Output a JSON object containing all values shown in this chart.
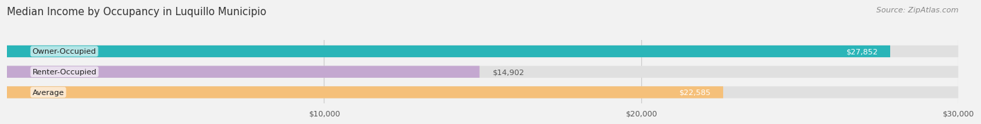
{
  "title": "Median Income by Occupancy in Luquillo Municipio",
  "source": "Source: ZipAtlas.com",
  "categories": [
    "Owner-Occupied",
    "Renter-Occupied",
    "Average"
  ],
  "values": [
    27852,
    14902,
    22585
  ],
  "bar_colors": [
    "#2ab5b8",
    "#c4a8d0",
    "#f5c07a"
  ],
  "label_colors": [
    "#333333",
    "#333333",
    "#333333"
  ],
  "value_labels": [
    "$27,852",
    "$14,902",
    "$22,585"
  ],
  "value_inside": [
    true,
    false,
    true
  ],
  "xlim": [
    0,
    30000
  ],
  "xticks": [
    10000,
    20000,
    30000
  ],
  "xtick_labels": [
    "$10,000",
    "$20,000",
    "$30,000"
  ],
  "background_color": "#f2f2f2",
  "bar_background_color": "#e0e0e0",
  "title_fontsize": 10.5,
  "source_fontsize": 8,
  "bar_label_fontsize": 8,
  "value_label_fontsize": 8,
  "tick_fontsize": 8
}
